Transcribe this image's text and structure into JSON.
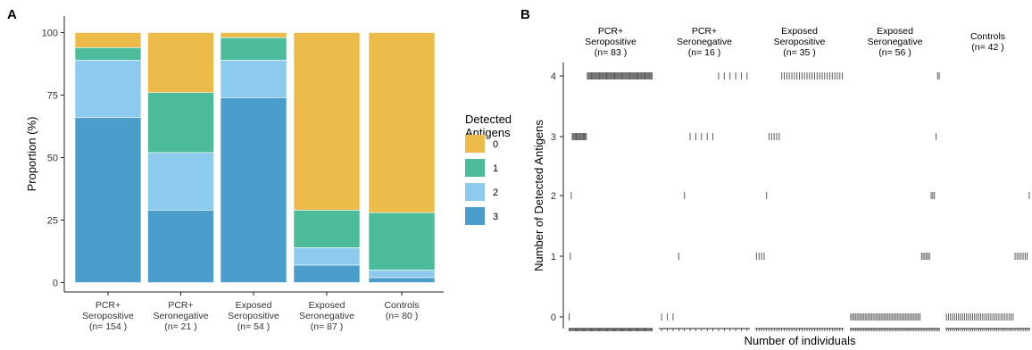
{
  "panels": {
    "a_label": "A",
    "b_label": "B"
  },
  "colors": {
    "0": "#EDBB4A",
    "1": "#4CBB9A",
    "2": "#8CCBEE",
    "3": "#4B9DCB",
    "rug": "#5a5a5a",
    "axis": "#222222"
  },
  "chart_data": [
    {
      "type": "bar",
      "stacked": true,
      "panel": "A",
      "ylabel": "Proportion (%)",
      "ylim": [
        0,
        100
      ],
      "yticks": [
        "0",
        "25",
        "50",
        "75",
        "100"
      ],
      "categories": [
        [
          "PCR+",
          "Seropositive",
          "(n= 154 )"
        ],
        [
          "PCR+",
          "Seronegative",
          "(n= 21 )"
        ],
        [
          "Exposed",
          "Seropositive",
          "(n= 54 )"
        ],
        [
          "Exposed",
          "Seronegative",
          "(n= 87 )"
        ],
        [
          "Controls",
          "(n= 80 )"
        ]
      ],
      "legend_title": [
        "Detected",
        "Antigens"
      ],
      "legend_position": "right",
      "series": [
        {
          "name": "0",
          "values": [
            6,
            24,
            2,
            71,
            72
          ]
        },
        {
          "name": "1",
          "values": [
            5,
            24,
            9,
            15,
            23
          ]
        },
        {
          "name": "2",
          "values": [
            23,
            23,
            15,
            7,
            3
          ]
        },
        {
          "name": "3",
          "values": [
            66,
            29,
            74,
            7,
            2
          ]
        }
      ]
    },
    {
      "type": "scatter",
      "panel": "B",
      "ylabel": "Number of Detected Antigens",
      "xlabel": "Number of individuals",
      "yticks": [
        "0",
        "1",
        "2",
        "3",
        "4"
      ],
      "facets": [
        {
          "label": [
            "PCR+",
            "Seropositive",
            "(n= 83 )"
          ],
          "n": 83,
          "counts": {
            "4": 65,
            "3": 15,
            "2": 1,
            "1": 1,
            "0": 1
          }
        },
        {
          "label": [
            "PCR+",
            "Seronegative",
            "(n= 16 )"
          ],
          "n": 16,
          "counts": {
            "4": 6,
            "3": 5,
            "2": 1,
            "1": 1,
            "0": 3
          }
        },
        {
          "label": [
            "Exposed",
            "Seropositive",
            "(n= 35 )"
          ],
          "n": 35,
          "counts": {
            "4": 25,
            "3": 5,
            "2": 1,
            "1": 4,
            "0": 0
          }
        },
        {
          "label": [
            "Exposed",
            "Seronegative",
            "(n= 56 )"
          ],
          "n": 56,
          "counts": {
            "4": 2,
            "3": 1,
            "2": 3,
            "1": 6,
            "0": 44
          }
        },
        {
          "label": [
            "Controls",
            "(n= 42 )"
          ],
          "n": 42,
          "counts": {
            "4": 0,
            "3": 0,
            "2": 1,
            "1": 7,
            "0": 34
          }
        }
      ]
    }
  ]
}
